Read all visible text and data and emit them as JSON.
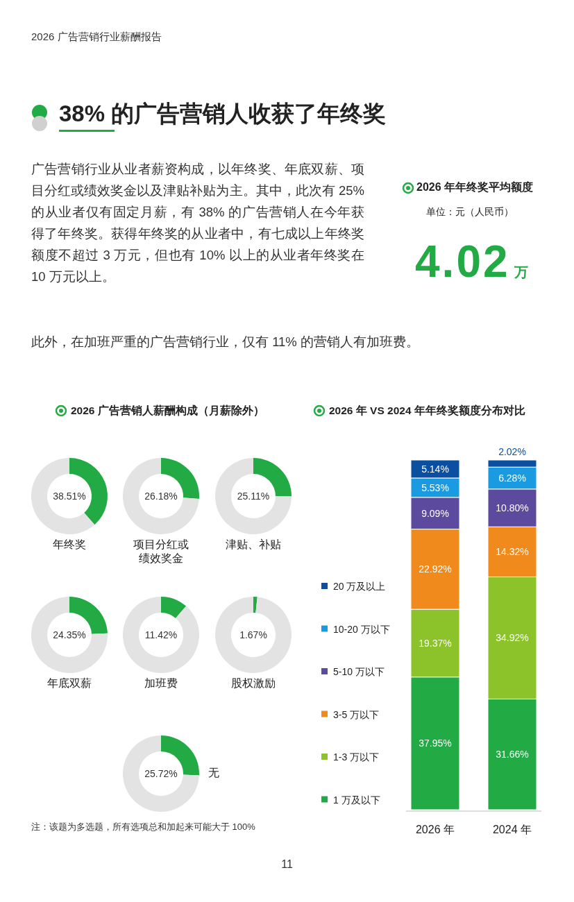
{
  "chart_data": [
    {
      "type": "other",
      "title": "38% 的广告营销人收获了年终奖",
      "annotations": [
        "2026 广告营销行业薪酬报告",
        "广告营销行业从业者薪资构成，以年终奖、年底双薪、项目分红或绩效奖金以及津贴补贴为主。其中，此次有 25% 的从业者仅有固定月薪，有 38% 的广告营销人在今年获得了年终奖。获得年终奖的从业者中，有七成以上年终奖额度不超过 3 万元，但也有 10% 以上的从业者年终奖在 10 万元以上。",
        "此外，在加班严重的广告营销行业，仅有 11% 的营销人有加班费。",
        "2026 年年终奖平均额度",
        "单位：元（人民币）",
        "4.02",
        "万",
        "11"
      ]
    },
    {
      "type": "other",
      "title": "2026 广告营销人薪酬构成（月薪除外）",
      "annotations": [
        "注：该题为多选题，所有选项总和加起来可能大于 100%"
      ]
    },
    {
      "type": "donut",
      "title": "年终奖",
      "categories": [
        null,
        null
      ],
      "values": [
        38.51,
        61.49
      ],
      "colors": [
        "#22aa44",
        "#e3e3e3"
      ],
      "annotations": [
        "38.51%"
      ]
    },
    {
      "type": "donut",
      "title": "项目分红或绩效奖金",
      "categories": [
        null,
        null
      ],
      "values": [
        26.18,
        73.82
      ],
      "colors": [
        "#22aa44",
        "#e3e3e3"
      ],
      "annotations": [
        "26.18%"
      ]
    },
    {
      "type": "donut",
      "title": "津贴、补贴",
      "categories": [
        null,
        null
      ],
      "values": [
        25.11,
        74.89
      ],
      "colors": [
        "#22aa44",
        "#e3e3e3"
      ],
      "annotations": [
        "25.11%"
      ]
    },
    {
      "type": "donut",
      "title": "年底双薪",
      "categories": [
        null,
        null
      ],
      "values": [
        24.35,
        75.65
      ],
      "colors": [
        "#22aa44",
        "#e3e3e3"
      ],
      "annotations": [
        "24.35%"
      ]
    },
    {
      "type": "donut",
      "title": "加班费",
      "categories": [
        null,
        null
      ],
      "values": [
        11.42,
        88.58
      ],
      "colors": [
        "#22aa44",
        "#e3e3e3"
      ],
      "annotations": [
        "11.42%"
      ]
    },
    {
      "type": "donut",
      "title": "股权激励",
      "categories": [
        null,
        null
      ],
      "values": [
        1.67,
        98.33
      ],
      "colors": [
        "#22aa44",
        "#e3e3e3"
      ],
      "annotations": [
        "1.67%"
      ]
    },
    {
      "type": "donut",
      "title": "无",
      "categories": [
        null,
        null
      ],
      "values": [
        25.72,
        74.28
      ],
      "colors": [
        "#22aa44",
        "#e3e3e3"
      ],
      "annotations": [
        "25.72%"
      ]
    },
    {
      "type": "bar",
      "title": "2026 年 VS 2024 年年终奖额度分布对比",
      "categories": [
        "2026 年",
        "2024 年"
      ],
      "stacked": true,
      "legend": "left",
      "series": [
        {
          "name": "1 万及以下",
          "color": "#22aa44",
          "values": [
            37.95,
            31.66
          ],
          "value_labels": [
            "37.95%",
            "31.66%"
          ]
        },
        {
          "name": "1-3 万以下",
          "color": "#8cc22a",
          "values": [
            19.37,
            34.92
          ],
          "value_labels": [
            "19.37%",
            "34.92%"
          ]
        },
        {
          "name": "3-5 万以下",
          "color": "#f08a1c",
          "values": [
            22.92,
            14.32
          ],
          "value_labels": [
            "22.92%",
            "14.32%"
          ]
        },
        {
          "name": "5-10 万以下",
          "color": "#5b4a9e",
          "values": [
            9.09,
            10.8
          ],
          "value_labels": [
            "9.09%",
            "10.80%"
          ]
        },
        {
          "name": "10-20 万以下",
          "color": "#1a9ae0",
          "values": [
            5.53,
            6.28
          ],
          "value_labels": [
            "5.53%",
            "6.28%"
          ]
        },
        {
          "name": "20 万及以上",
          "color": "#0a4fa0",
          "values": [
            5.14,
            2.02
          ],
          "value_labels": [
            "5.14%",
            "2.02%"
          ]
        }
      ]
    }
  ]
}
